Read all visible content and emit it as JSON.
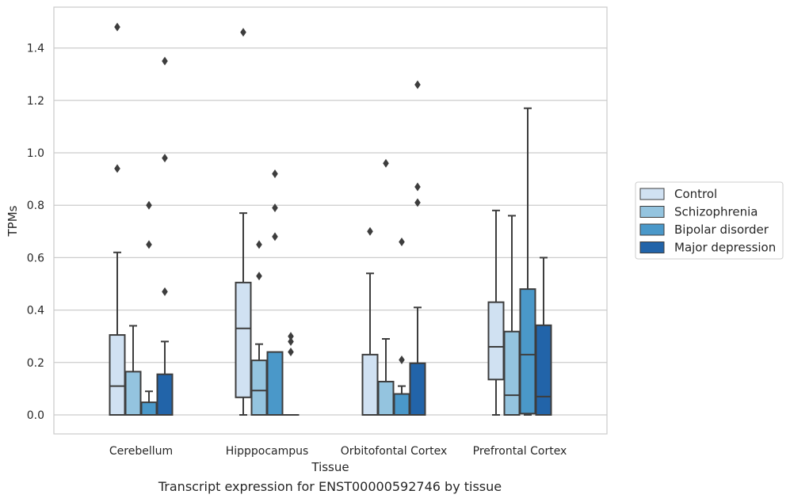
{
  "chart_data": {
    "type": "box",
    "xlabel": "Tissue",
    "ylabel": "TPMs",
    "ylim": [
      -0.07,
      1.55
    ],
    "yticks": [
      0.0,
      0.2,
      0.4,
      0.6,
      0.8,
      1.0,
      1.2,
      1.4
    ],
    "ytick_labels": [
      "0.0",
      "0.2",
      "0.4",
      "0.6",
      "0.8",
      "1.0",
      "1.2",
      "1.4"
    ],
    "grid": "horizontal",
    "legend_position": "right",
    "categories": [
      "Cerebellum",
      "Hipppocampus",
      "Orbitofontal Cortex",
      "Prefrontal Cortex"
    ],
    "series": [
      {
        "name": "Control",
        "color": "#d0e1f2",
        "boxes": [
          {
            "min": 0.0,
            "q1": 0.0,
            "median": 0.11,
            "q3": 0.305,
            "max": 0.62,
            "outliers": [
              0.94,
              1.48
            ]
          },
          {
            "min": 0.0,
            "q1": 0.067,
            "median": 0.33,
            "q3": 0.505,
            "max": 0.77,
            "outliers": [
              1.46
            ]
          },
          {
            "min": 0.0,
            "q1": 0.0,
            "median": 0.0,
            "q3": 0.23,
            "max": 0.54,
            "outliers": [
              0.7
            ]
          },
          {
            "min": 0.0,
            "q1": 0.135,
            "median": 0.26,
            "q3": 0.43,
            "max": 0.78,
            "outliers": []
          }
        ]
      },
      {
        "name": "Schizophrenia",
        "color": "#94c4df",
        "boxes": [
          {
            "min": 0.0,
            "q1": 0.0,
            "median": 0.0,
            "q3": 0.165,
            "max": 0.34,
            "outliers": []
          },
          {
            "min": 0.0,
            "q1": 0.0,
            "median": 0.093,
            "q3": 0.208,
            "max": 0.27,
            "outliers": [
              0.53,
              0.65
            ]
          },
          {
            "min": 0.0,
            "q1": 0.0,
            "median": 0.0,
            "q3": 0.127,
            "max": 0.29,
            "outliers": [
              0.96
            ]
          },
          {
            "min": 0.0,
            "q1": 0.0,
            "median": 0.075,
            "q3": 0.318,
            "max": 0.76,
            "outliers": []
          }
        ]
      },
      {
        "name": "Bipolar disorder",
        "color": "#4a98c9",
        "boxes": [
          {
            "min": 0.0,
            "q1": 0.0,
            "median": 0.0,
            "q3": 0.048,
            "max": 0.09,
            "outliers": [
              0.65,
              0.8
            ]
          },
          {
            "min": 0.0,
            "q1": 0.0,
            "median": 0.0,
            "q3": 0.24,
            "max": 0.24,
            "outliers": [
              0.68,
              0.79,
              0.92
            ]
          },
          {
            "min": 0.0,
            "q1": 0.0,
            "median": 0.0,
            "q3": 0.08,
            "max": 0.11,
            "outliers": [
              0.21,
              0.66
            ]
          },
          {
            "min": 0.0,
            "q1": 0.005,
            "median": 0.23,
            "q3": 0.48,
            "max": 1.17,
            "outliers": []
          }
        ]
      },
      {
        "name": "Major depression",
        "color": "#2264a9",
        "boxes": [
          {
            "min": 0.0,
            "q1": 0.0,
            "median": 0.0,
            "q3": 0.155,
            "max": 0.28,
            "outliers": [
              0.47,
              0.98,
              1.35
            ]
          },
          {
            "min": 0.0,
            "q1": 0.0,
            "median": 0.0,
            "q3": 0.0,
            "max": 0.0,
            "outliers": [
              0.24,
              0.28,
              0.3
            ]
          },
          {
            "min": 0.0,
            "q1": 0.0,
            "median": 0.0,
            "q3": 0.197,
            "max": 0.41,
            "outliers": [
              0.81,
              0.87,
              1.26
            ]
          },
          {
            "min": 0.0,
            "q1": 0.0,
            "median": 0.07,
            "q3": 0.342,
            "max": 0.6,
            "outliers": []
          }
        ]
      }
    ],
    "caption": "Transcript expression for ENST00000592746 by tissue"
  }
}
